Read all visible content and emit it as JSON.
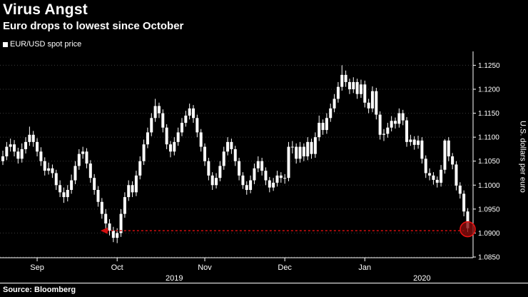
{
  "colors": {
    "background": "#000000",
    "foreground": "#ffffff",
    "grid": "#3c3c3c",
    "candle": "#ffffff",
    "annotation_red": "#d40f0f",
    "circle_fill": "#8a0b0b",
    "circle_stroke": "#e51212"
  },
  "chart_data": {
    "type": "candlestick",
    "title": "Virus Angst",
    "subtitle": "Euro drops to lowest since October",
    "legend": "EUR/USD spot price",
    "ylabel": "U.S. dollars per euro",
    "ylim": [
      1.085,
      1.127
    ],
    "yticks": [
      1.085,
      1.09,
      1.095,
      1.1,
      1.105,
      1.11,
      1.115,
      1.12,
      1.125
    ],
    "grid": true,
    "legend_position": "top-left",
    "axis_side": "right",
    "xticks": [
      {
        "label": "Sep",
        "index": 9
      },
      {
        "label": "Oct",
        "index": 30
      },
      {
        "label": "Nov",
        "index": 53
      },
      {
        "label": "Dec",
        "index": 74
      },
      {
        "label": "Jan",
        "index": 95
      }
    ],
    "year_labels": [
      {
        "label": "2019",
        "index": 45
      },
      {
        "label": "2020",
        "index": 110
      }
    ],
    "candle_format": "ohlc",
    "candles": [
      [
        1.105,
        1.1072,
        1.1042,
        1.106
      ],
      [
        1.106,
        1.109,
        1.1052,
        1.108
      ],
      [
        1.108,
        1.1097,
        1.107,
        1.1085
      ],
      [
        1.1085,
        1.1094,
        1.106,
        1.107
      ],
      [
        1.107,
        1.1078,
        1.1045,
        1.1055
      ],
      [
        1.1055,
        1.1087,
        1.1047,
        1.1075
      ],
      [
        1.1075,
        1.11,
        1.1066,
        1.109
      ],
      [
        1.109,
        1.1122,
        1.1082,
        1.1105
      ],
      [
        1.1105,
        1.1113,
        1.108,
        1.109
      ],
      [
        1.109,
        1.1098,
        1.106,
        1.107
      ],
      [
        1.107,
        1.1079,
        1.104,
        1.105
      ],
      [
        1.105,
        1.1058,
        1.102,
        1.103
      ],
      [
        1.103,
        1.1047,
        1.1022,
        1.1035
      ],
      [
        1.1035,
        1.1043,
        1.1015,
        1.1025
      ],
      [
        1.1025,
        1.1032,
        1.099,
        1.1
      ],
      [
        1.1,
        1.101,
        1.0975,
        1.0985
      ],
      [
        1.0985,
        1.0995,
        1.0963,
        1.0975
      ],
      [
        1.0975,
        1.1,
        1.0966,
        1.099
      ],
      [
        1.099,
        1.1022,
        1.0982,
        1.101
      ],
      [
        1.101,
        1.105,
        1.1002,
        1.104
      ],
      [
        1.104,
        1.1075,
        1.1032,
        1.1065
      ],
      [
        1.1065,
        1.108,
        1.1055,
        1.107
      ],
      [
        1.107,
        1.1077,
        1.1035,
        1.1045
      ],
      [
        1.1045,
        1.1052,
        1.1005,
        1.1015
      ],
      [
        1.1015,
        1.1023,
        1.098,
        1.099
      ],
      [
        1.099,
        1.0998,
        1.0955,
        1.0965
      ],
      [
        1.0965,
        1.0973,
        1.093,
        1.094
      ],
      [
        1.094,
        1.095,
        1.091,
        1.092
      ],
      [
        1.092,
        1.0929,
        1.0895,
        1.0905
      ],
      [
        1.0905,
        1.0913,
        1.0881,
        1.089
      ],
      [
        1.089,
        1.091,
        1.0879,
        1.09
      ],
      [
        1.09,
        1.095,
        1.0892,
        1.094
      ],
      [
        1.094,
        1.0985,
        1.0932,
        1.0975
      ],
      [
        1.0975,
        1.101,
        1.0967,
        1.1
      ],
      [
        1.1,
        1.1008,
        1.0975,
        1.0985
      ],
      [
        1.0985,
        1.103,
        1.0977,
        1.102
      ],
      [
        1.102,
        1.106,
        1.1012,
        1.105
      ],
      [
        1.105,
        1.1095,
        1.1042,
        1.1085
      ],
      [
        1.1085,
        1.112,
        1.1077,
        1.111
      ],
      [
        1.111,
        1.115,
        1.1102,
        1.114
      ],
      [
        1.114,
        1.118,
        1.1132,
        1.1165
      ],
      [
        1.1165,
        1.1172,
        1.114,
        1.115
      ],
      [
        1.115,
        1.1158,
        1.111,
        1.112
      ],
      [
        1.112,
        1.1127,
        1.1075,
        1.1085
      ],
      [
        1.1085,
        1.1092,
        1.1058,
        1.107
      ],
      [
        1.107,
        1.11,
        1.1062,
        1.109
      ],
      [
        1.109,
        1.112,
        1.1082,
        1.111
      ],
      [
        1.111,
        1.114,
        1.1102,
        1.113
      ],
      [
        1.113,
        1.1155,
        1.1122,
        1.1145
      ],
      [
        1.1145,
        1.117,
        1.1137,
        1.116
      ],
      [
        1.116,
        1.1167,
        1.113,
        1.114
      ],
      [
        1.114,
        1.1147,
        1.11,
        1.111
      ],
      [
        1.111,
        1.1117,
        1.107,
        1.108
      ],
      [
        1.108,
        1.1087,
        1.104,
        1.105
      ],
      [
        1.105,
        1.1057,
        1.101,
        1.102
      ],
      [
        1.102,
        1.1027,
        1.099,
        1.1
      ],
      [
        1.1,
        1.1025,
        1.0993,
        1.1015
      ],
      [
        1.1015,
        1.105,
        1.1008,
        1.104
      ],
      [
        1.104,
        1.108,
        1.1032,
        1.107
      ],
      [
        1.107,
        1.11,
        1.1062,
        1.109
      ],
      [
        1.109,
        1.1097,
        1.1065,
        1.1075
      ],
      [
        1.1075,
        1.1082,
        1.104,
        1.105
      ],
      [
        1.105,
        1.1057,
        1.101,
        1.102
      ],
      [
        1.102,
        1.1027,
        1.0992,
        1.1
      ],
      [
        1.1,
        1.1008,
        1.098,
        1.099
      ],
      [
        1.099,
        1.102,
        1.0983,
        1.101
      ],
      [
        1.101,
        1.1045,
        1.1002,
        1.1035
      ],
      [
        1.1035,
        1.106,
        1.1027,
        1.105
      ],
      [
        1.105,
        1.1057,
        1.102,
        1.103
      ],
      [
        1.103,
        1.1037,
        1.1,
        1.101
      ],
      [
        1.101,
        1.1017,
        1.0985,
        1.0995
      ],
      [
        1.0995,
        1.1015,
        1.0988,
        1.1005
      ],
      [
        1.1005,
        1.103,
        1.0997,
        1.102
      ],
      [
        1.102,
        1.1027,
        1.1005,
        1.1015
      ],
      [
        1.1015,
        1.1023,
        1.1003,
        1.1015
      ],
      [
        1.1015,
        1.109,
        1.1008,
        1.108
      ],
      [
        1.108,
        1.1092,
        1.1066,
        1.108
      ],
      [
        1.108,
        1.1087,
        1.1045,
        1.1055
      ],
      [
        1.1055,
        1.109,
        1.1047,
        1.108
      ],
      [
        1.108,
        1.1087,
        1.105,
        1.106
      ],
      [
        1.106,
        1.11,
        1.1052,
        1.109
      ],
      [
        1.109,
        1.1097,
        1.1055,
        1.1065
      ],
      [
        1.1065,
        1.111,
        1.1057,
        1.11
      ],
      [
        1.11,
        1.1145,
        1.1092,
        1.113
      ],
      [
        1.113,
        1.1137,
        1.1105,
        1.1115
      ],
      [
        1.1115,
        1.115,
        1.1107,
        1.114
      ],
      [
        1.114,
        1.117,
        1.1132,
        1.116
      ],
      [
        1.116,
        1.119,
        1.1152,
        1.118
      ],
      [
        1.118,
        1.1215,
        1.1172,
        1.1205
      ],
      [
        1.1205,
        1.125,
        1.1197,
        1.123
      ],
      [
        1.123,
        1.1239,
        1.1205,
        1.1215
      ],
      [
        1.1215,
        1.1222,
        1.119,
        1.12
      ],
      [
        1.12,
        1.1225,
        1.1192,
        1.1215
      ],
      [
        1.1215,
        1.1222,
        1.118,
        1.119
      ],
      [
        1.119,
        1.122,
        1.1182,
        1.121
      ],
      [
        1.121,
        1.1218,
        1.1162,
        1.1172
      ],
      [
        1.1172,
        1.118,
        1.115,
        1.116
      ],
      [
        1.116,
        1.1206,
        1.1152,
        1.1196
      ],
      [
        1.1196,
        1.1203,
        1.1137,
        1.1147
      ],
      [
        1.1147,
        1.1154,
        1.1095,
        1.1105
      ],
      [
        1.1105,
        1.1117,
        1.1092,
        1.1107
      ],
      [
        1.1107,
        1.113,
        1.1099,
        1.112
      ],
      [
        1.112,
        1.1144,
        1.1112,
        1.1134
      ],
      [
        1.1134,
        1.1141,
        1.1118,
        1.1128
      ],
      [
        1.1128,
        1.116,
        1.112,
        1.115
      ],
      [
        1.115,
        1.1157,
        1.1125,
        1.1135
      ],
      [
        1.1135,
        1.1142,
        1.108,
        1.109
      ],
      [
        1.109,
        1.1105,
        1.1082,
        1.1095
      ],
      [
        1.1095,
        1.1102,
        1.1074,
        1.1084
      ],
      [
        1.1084,
        1.1103,
        1.1076,
        1.1093
      ],
      [
        1.1093,
        1.11,
        1.1045,
        1.1055
      ],
      [
        1.1055,
        1.1062,
        1.1015,
        1.1025
      ],
      [
        1.1025,
        1.1035,
        1.101,
        1.102
      ],
      [
        1.102,
        1.1027,
        1.1001,
        1.1011
      ],
      [
        1.1011,
        1.1018,
        1.0995,
        1.1005
      ],
      [
        1.1005,
        1.1042,
        1.0997,
        1.1032
      ],
      [
        1.1032,
        1.1096,
        1.1024,
        1.1093
      ],
      [
        1.1093,
        1.11,
        1.105,
        1.106
      ],
      [
        1.106,
        1.1067,
        1.1033,
        1.1043
      ],
      [
        1.1043,
        1.105,
        1.0989,
        1.0999
      ],
      [
        1.0999,
        1.1006,
        1.0972,
        1.0982
      ],
      [
        1.0982,
        1.0989,
        1.0935,
        1.0945
      ],
      [
        1.0945,
        1.0952,
        1.0902,
        1.091
      ]
    ],
    "annotation": {
      "arrow_level": 1.0905,
      "arrow_from_index": 26,
      "arrow_to_index": 122,
      "circle_radius": 10.5,
      "style": "red dotted arrow pointing left from circled latest low back toward the October low"
    }
  },
  "footer": {
    "source": "Source: Bloomberg"
  }
}
